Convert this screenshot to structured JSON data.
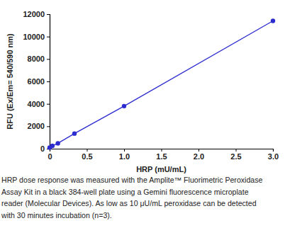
{
  "chart_data": {
    "type": "line",
    "x_label": "HRP (mU/mL)",
    "y_label": "RFU (Ex/Em= 540/590 nm)",
    "x": [
      0,
      0.037,
      0.111,
      0.333,
      1,
      3
    ],
    "series": [
      {
        "color": "#2b2bd0",
        "values": [
          100,
          250,
          480,
          1350,
          3800,
          11400
        ],
        "marker": "circle",
        "line_style": "solid"
      }
    ],
    "xlim": [
      0,
      3
    ],
    "xticks": [
      0,
      0.5,
      {
        "value": 1,
        "label": "1.0"
      },
      {
        "value": 1.5,
        "label": "1.5"
      },
      {
        "value": 2,
        "label": "2.0"
      },
      2.5,
      {
        "value": 3,
        "label": "3.0"
      }
    ],
    "ylim": [
      0,
      12000
    ],
    "yticks": [
      0,
      2000,
      4000,
      6000,
      8000,
      10000,
      12000
    ],
    "grid": false,
    "annotations": [
      "HRP dose response was measured with the Amplite™ Fluorimetric Peroxidase",
      "Assay Kit in a black 384-well plate using a Gemini fluorescence microplate",
      "reader (Molecular Devices). As low as 10 μU/mL peroxidase can be detected",
      "with 30 minutes incubation (n=3)."
    ]
  }
}
